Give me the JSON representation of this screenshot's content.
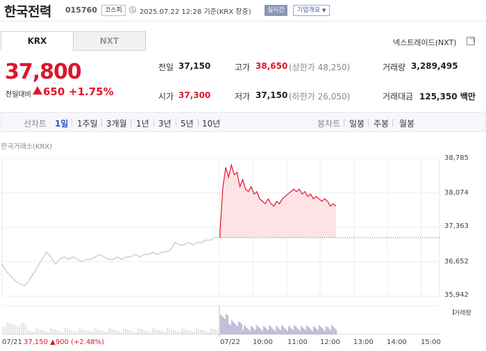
{
  "header": {
    "name": "한국전력",
    "code": "015760",
    "market": "코스피",
    "datetime": "2025.07.22 12:28",
    "basis": "기준(KRX 장중)",
    "realtime": "실시간",
    "overview": "기업개요"
  },
  "tabs": [
    "KRX",
    "NXT"
  ],
  "nxt_link": "넥스트레이드(NXT)",
  "price": {
    "current": "37,800",
    "change_label": "전일대비",
    "change": "650",
    "change_pct": "+1.75%"
  },
  "stats": {
    "prev_label": "전일",
    "prev": "37,150",
    "high_label": "고가",
    "high": "38,650",
    "upper": "(상한가 48,250)",
    "volume_label": "거래량",
    "volume": "3,289,495",
    "open_label": "시가",
    "open": "37,300",
    "low_label": "저가",
    "low": "37,150",
    "lower": "(하한가 26,050)",
    "amount_label": "거래대금",
    "amount": "125,350 백만"
  },
  "period_bar": {
    "line_label": "선차트",
    "periods": [
      "1일",
      "1주일",
      "3개월",
      "1년",
      "3년",
      "5년",
      "10년"
    ],
    "selected": "1일",
    "candle_label": "봉차트",
    "candles": [
      "일봉",
      "주봉",
      "월봉"
    ]
  },
  "source": "한국거래소(KRX)",
  "footer": {
    "date": "07/21",
    "price": "37,150 ▲900 (+2.48%)"
  },
  "colors": {
    "up": "#e0142b",
    "prev_line": "#bbbbbb",
    "volume": "#8a7bb8",
    "accent": "#3050c8"
  },
  "chart_data": {
    "type": "line",
    "title": "",
    "xlabel": "",
    "ylabel": "",
    "ylim": [
      35942,
      38785
    ],
    "yticks": [
      "38,785",
      "38,074",
      "37,363",
      "36,652",
      "35,942"
    ],
    "xticks": [
      "07/22",
      "10:00",
      "11:00",
      "12:00",
      "13:00",
      "14:00",
      "15:00"
    ],
    "reference_price": 37150,
    "series": [
      {
        "values_prev_day": [
          36600,
          36450,
          36350,
          36250,
          36200,
          36150,
          36250,
          36400,
          36550,
          36700,
          36850,
          36750,
          36600,
          36700,
          36750,
          36700,
          36750,
          36700,
          36650,
          36700,
          36700,
          36750,
          36800,
          36750,
          36700,
          36700,
          36750,
          36700,
          36750,
          36750,
          36800,
          36750,
          36800,
          36800,
          36850,
          36800,
          36850,
          36850,
          36900,
          37050,
          37000,
          37000,
          37050,
          37000,
          37050,
          37050,
          37100,
          37100,
          37150,
          37150
        ]
      },
      {
        "values_today": [
          37300,
          38200,
          38600,
          38400,
          38650,
          38450,
          38500,
          38200,
          38350,
          38150,
          38100,
          38200,
          38050,
          38100,
          37950,
          37900,
          37850,
          37950,
          37850,
          37800,
          37900,
          37850,
          37950,
          38000,
          38050,
          38100,
          38150,
          38100,
          38150,
          38050,
          38100,
          38000,
          38050,
          37950,
          38000,
          37950,
          37900,
          37950,
          37900,
          37800,
          37850,
          37800
        ]
      }
    ],
    "volume_label": "거래량"
  }
}
